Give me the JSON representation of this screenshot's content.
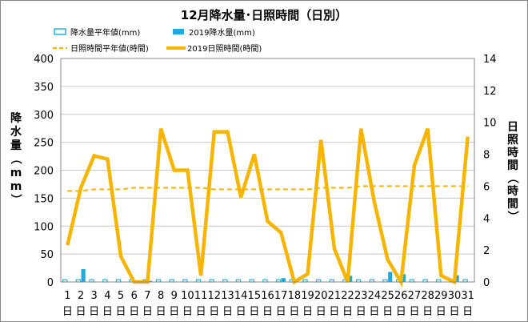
{
  "chart_data": {
    "type": "bar",
    "title": "12月降水量･日照時間（日別）",
    "categories": [
      "1",
      "2",
      "3",
      "4",
      "5",
      "6",
      "7",
      "8",
      "9",
      "10",
      "11",
      "12",
      "13",
      "14",
      "15",
      "16",
      "17",
      "18",
      "19",
      "20",
      "21",
      "22",
      "23",
      "24",
      "25",
      "26",
      "27",
      "28",
      "29",
      "30",
      "31"
    ],
    "category_suffix": "日",
    "left_axis": {
      "label": "降水量（mm）",
      "ylim": [
        0,
        400
      ],
      "ticks": [
        "0",
        "50",
        "100",
        "150",
        "200",
        "250",
        "300",
        "350",
        "400"
      ]
    },
    "right_axis": {
      "label": "日照時間（時間）",
      "ylim": [
        0,
        14
      ],
      "ticks": [
        "0",
        "2",
        "4",
        "6",
        "8",
        "10",
        "12",
        "14"
      ]
    },
    "legend": {
      "placement": "top",
      "items": [
        {
          "label": "降水量平年値(mm)",
          "style": "bar-outline",
          "color": "#1fb4e3"
        },
        {
          "label": "2019降水量(mm)",
          "style": "bar-filled",
          "color": "#1fa9dc"
        },
        {
          "label": "日照時間平年値(時間)",
          "style": "dashed-line",
          "color": "#f7b500"
        },
        {
          "label": "2019日照時間(時間)",
          "style": "solid-line",
          "color": "#f7b500"
        }
      ]
    },
    "series": [
      {
        "name": "降水量平年値(mm)",
        "axis": "left",
        "kind": "bar-outline",
        "color": "#1fb4e3",
        "values": [
          4,
          4,
          4,
          4,
          4,
          4,
          4,
          4,
          4,
          4,
          4,
          4,
          4,
          4,
          4,
          4,
          4,
          4,
          4,
          4,
          4,
          4,
          4,
          4,
          4,
          4,
          4,
          4,
          4,
          4,
          4
        ]
      },
      {
        "name": "2019降水量(mm)",
        "axis": "left",
        "kind": "bar-filled",
        "color": "#1fa9dc",
        "values": [
          0,
          23,
          0,
          0,
          0,
          0,
          2,
          0,
          0,
          0,
          0,
          0,
          0,
          0,
          0,
          0,
          7,
          0,
          0,
          0,
          0,
          11,
          0,
          0,
          18,
          14,
          0,
          0,
          0,
          12,
          0
        ]
      },
      {
        "name": "日照時間平年値(時間)",
        "axis": "right",
        "kind": "dashed-line",
        "color": "#f7b500",
        "values": [
          5.7,
          5.7,
          5.8,
          5.8,
          5.8,
          5.9,
          5.9,
          5.9,
          5.9,
          5.9,
          5.9,
          5.8,
          5.8,
          5.8,
          5.8,
          5.8,
          5.8,
          5.8,
          5.8,
          5.9,
          5.9,
          5.9,
          6.0,
          6.0,
          6.0,
          6.0,
          6.0,
          6.0,
          6.0,
          6.0,
          6.0
        ]
      },
      {
        "name": "2019日照時間(時間)",
        "axis": "right",
        "kind": "solid-line",
        "color": "#f7b500",
        "values": [
          2.3,
          5.9,
          7.9,
          7.7,
          1.6,
          0.0,
          0.0,
          9.6,
          7.0,
          7.0,
          0.4,
          9.4,
          9.4,
          5.3,
          8.0,
          3.8,
          3.1,
          0.0,
          0.5,
          8.9,
          2.1,
          0.0,
          9.6,
          5.0,
          1.4,
          0.0,
          7.3,
          9.6,
          0.4,
          0.0,
          9.1
        ]
      }
    ],
    "grid": "horizontal"
  }
}
